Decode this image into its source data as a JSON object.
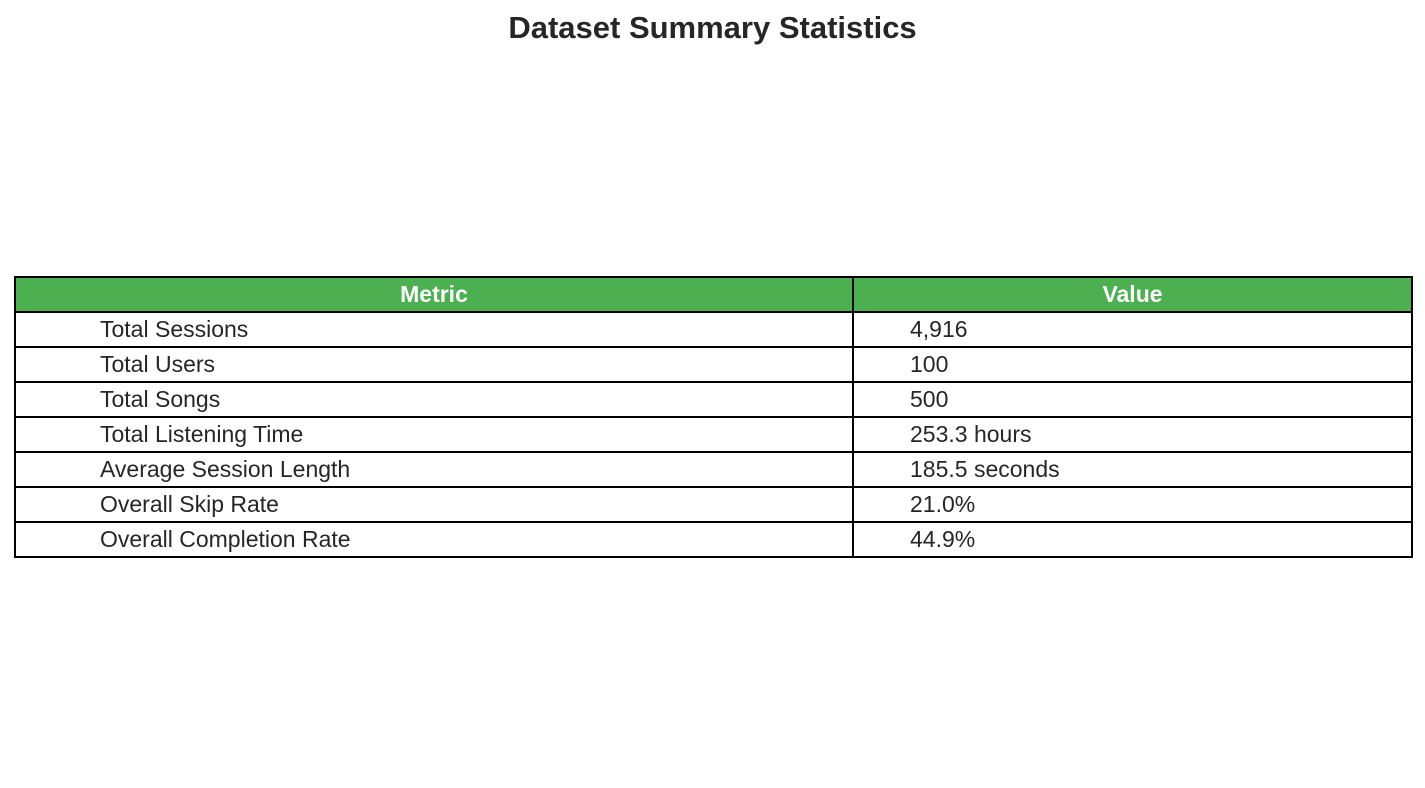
{
  "chart_data": {
    "type": "table",
    "title": "Dataset Summary Statistics",
    "columns": [
      "Metric",
      "Value"
    ],
    "header_color": "#4caf50",
    "header_text_color": "#ffffff",
    "rows": [
      {
        "metric": "Total Sessions",
        "value": "4,916"
      },
      {
        "metric": "Total Users",
        "value": "100"
      },
      {
        "metric": "Total Songs",
        "value": "500"
      },
      {
        "metric": "Total Listening Time",
        "value": "253.3 hours"
      },
      {
        "metric": "Average Session Length",
        "value": "185.5 seconds"
      },
      {
        "metric": "Overall Skip Rate",
        "value": "21.0%"
      },
      {
        "metric": "Overall Completion Rate",
        "value": "44.9%"
      }
    ]
  }
}
